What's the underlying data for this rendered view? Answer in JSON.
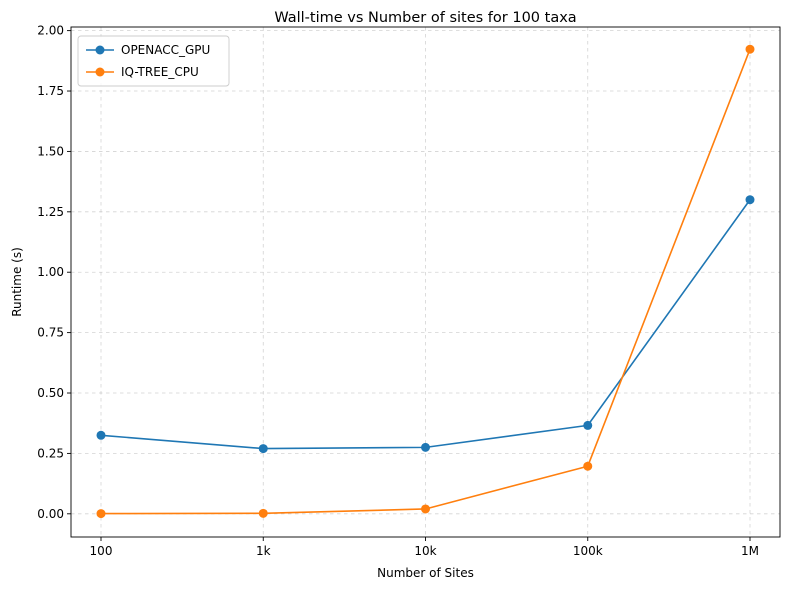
{
  "chart_data": {
    "type": "line",
    "title": "Wall-time vs Number of sites for 100 taxa",
    "xlabel": "Number of Sites",
    "ylabel": "Runtime (s)",
    "categories": [
      "100",
      "1k",
      "10k",
      "100k",
      "1M"
    ],
    "ylim": [
      -0.096,
      2.015
    ],
    "yticks": [
      "0.00",
      "0.25",
      "0.50",
      "0.75",
      "1.00",
      "1.25",
      "1.50",
      "1.75",
      "2.00"
    ],
    "grid": true,
    "legend_position": "top-left",
    "series": [
      {
        "name": "OPENACC_GPU",
        "color": "#1f77b4",
        "values": [
          0.325,
          0.27,
          0.275,
          0.366,
          1.3
        ]
      },
      {
        "name": "IQ-TREE_CPU",
        "color": "#ff7f0e",
        "values": [
          0.001,
          0.002,
          0.02,
          0.197,
          1.923
        ]
      }
    ]
  }
}
